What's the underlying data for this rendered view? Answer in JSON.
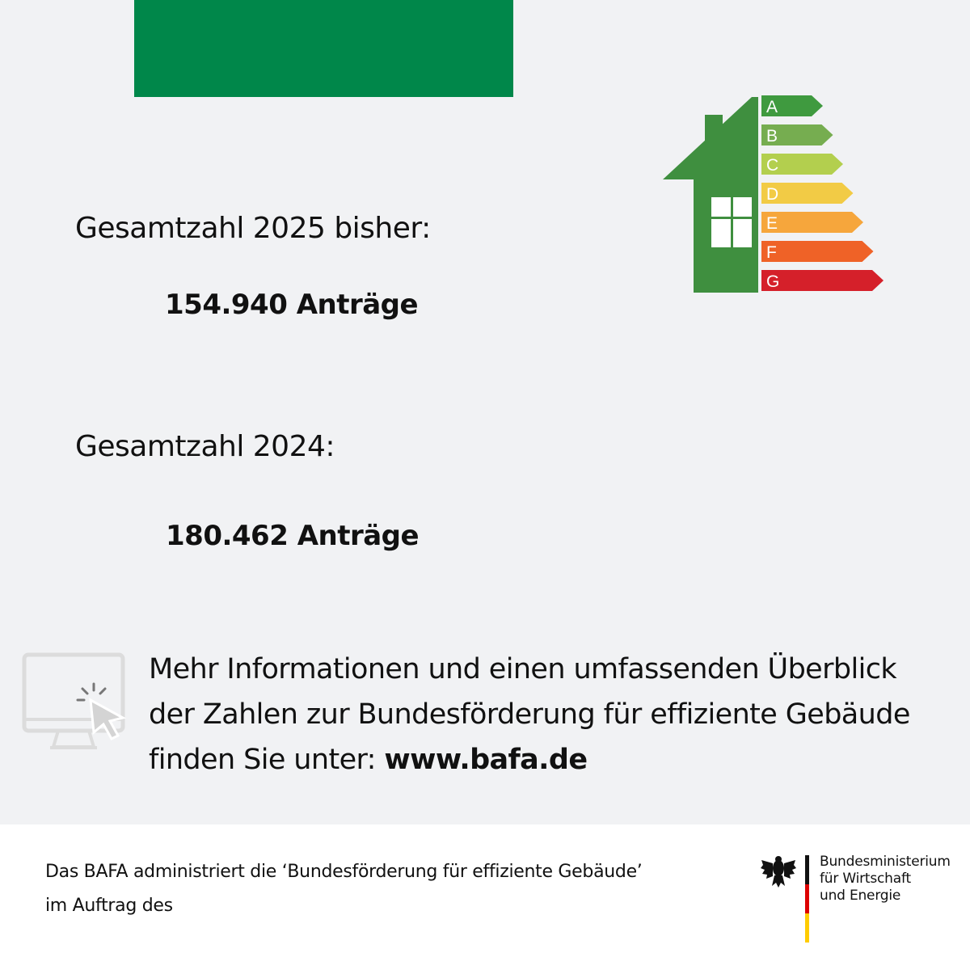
{
  "banner": {
    "color": "#00874a"
  },
  "stats": [
    {
      "label": "Gesamtzahl 2025 bisher:",
      "value": "154.940 Anträge"
    },
    {
      "label": "Gesamtzahl 2024:",
      "value": "180.462 Anträge"
    }
  ],
  "energy_label": {
    "classes": [
      "A",
      "B",
      "C",
      "D",
      "E",
      "F",
      "G"
    ],
    "colors": [
      "#3f9a3f",
      "#76ad50",
      "#b3cf4e",
      "#f2cb45",
      "#f6a63c",
      "#ef6227",
      "#d5202a"
    ],
    "house_color": "#3f8f3f"
  },
  "info": {
    "line1": "Mehr Informationen und einen  umfassenden Überblick",
    "line2": "der Zahlen zur Bundesförderung für effiziente Gebäude",
    "line3_prefix": "finden Sie unter: ",
    "url": "www.bafa.de"
  },
  "footer": {
    "line1": "Das BAFA administriert die ‘Bundesförderung für effiziente Gebäude’",
    "line2": "im Auftrag des",
    "ministry": [
      "Bundesministerium",
      "für Wirtschaft",
      "und Energie"
    ]
  },
  "icons": {
    "monitor": "monitor-click-icon",
    "eagle": "federal-eagle-icon",
    "house": "house-energy-icon"
  }
}
